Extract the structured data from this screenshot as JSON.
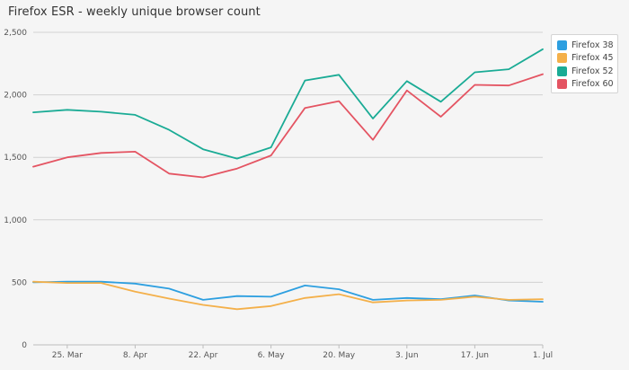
{
  "chart_data": {
    "type": "line",
    "title": "Firefox ESR - weekly unique browser count",
    "xlabel": "",
    "ylabel": "",
    "ylim": [
      0,
      2500
    ],
    "yticks": [
      "0",
      "500",
      "1,000",
      "1,500",
      "2,000",
      "2,500"
    ],
    "ytick_values": [
      0,
      500,
      1000,
      1500,
      2000,
      2500
    ],
    "x": [
      "2018-03-18",
      "2018-03-25",
      "2018-04-01",
      "2018-04-08",
      "2018-04-15",
      "2018-04-22",
      "2018-04-29",
      "2018-05-06",
      "2018-05-13",
      "2018-05-20",
      "2018-05-27",
      "2018-06-03",
      "2018-06-10",
      "2018-06-17",
      "2018-06-24",
      "2018-07-01"
    ],
    "xticks": [
      "25. Mar",
      "8. Apr",
      "22. Apr",
      "6. May",
      "20. May",
      "3. Jun",
      "17. Jun",
      "1. Jul"
    ],
    "xtick_dates": [
      "2018-03-25",
      "2018-04-08",
      "2018-04-22",
      "2018-05-06",
      "2018-05-20",
      "2018-06-03",
      "2018-06-17",
      "2018-07-01"
    ],
    "grid": "horizontal",
    "legend_position": "top-right",
    "series": [
      {
        "name": "Firefox 38",
        "color": "#2d9fe0",
        "values": [
          500,
          505,
          505,
          490,
          450,
          360,
          390,
          385,
          475,
          445,
          360,
          375,
          365,
          395,
          355,
          345
        ]
      },
      {
        "name": "Firefox 45",
        "color": "#f4b04a",
        "values": [
          505,
          495,
          495,
          425,
          370,
          320,
          285,
          310,
          375,
          405,
          340,
          355,
          360,
          385,
          360,
          365
        ]
      },
      {
        "name": "Firefox 52",
        "color": "#1aab95",
        "values": [
          1860,
          1880,
          1865,
          1840,
          1720,
          1565,
          1490,
          1580,
          2115,
          2160,
          1810,
          2110,
          1945,
          2180,
          2205,
          2365
        ]
      },
      {
        "name": "Firefox 60",
        "color": "#e45462",
        "values": [
          1425,
          1500,
          1535,
          1545,
          1370,
          1340,
          1410,
          1515,
          1895,
          1950,
          1640,
          2035,
          1825,
          2080,
          2075,
          2165
        ]
      }
    ]
  }
}
